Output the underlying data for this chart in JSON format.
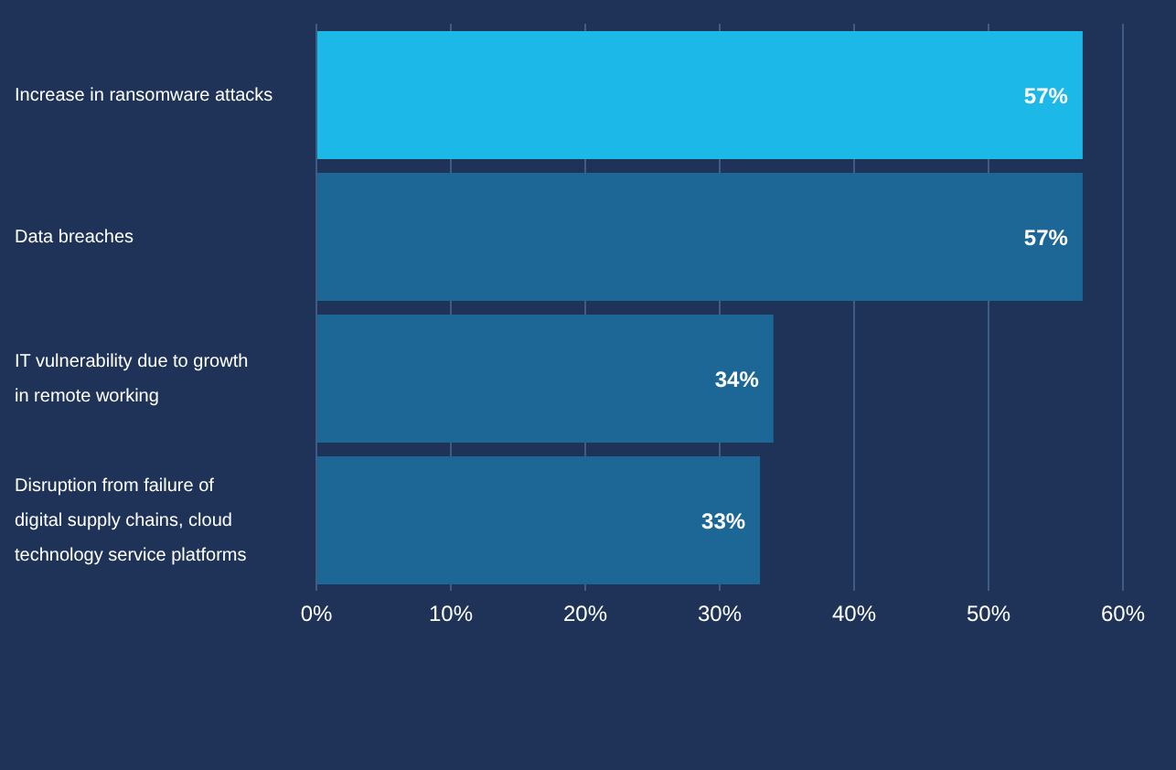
{
  "chart_data": {
    "type": "bar",
    "orientation": "horizontal",
    "categories": [
      "Increase in ransomware attacks",
      "Data breaches",
      "IT vulnerability due to growth in remote working",
      "Disruption from failure of digital supply chains, cloud technology service platforms"
    ],
    "values": [
      57,
      57,
      34,
      33
    ],
    "colors": [
      "#1bb8e8",
      "#1c6796",
      "#1c6796",
      "#1c6796"
    ],
    "value_labels": [
      "57%",
      "57%",
      "34%",
      "33%"
    ],
    "xlim": [
      0,
      60
    ],
    "xticks": [
      {
        "value": 0,
        "label": "0%"
      },
      {
        "value": 10,
        "label": "10%"
      },
      {
        "value": 20,
        "label": "20%"
      },
      {
        "value": 30,
        "label": "30%"
      },
      {
        "value": 40,
        "label": "40%"
      },
      {
        "value": 50,
        "label": "50%"
      },
      {
        "value": 60,
        "label": "60%"
      }
    ],
    "grid": "x"
  }
}
